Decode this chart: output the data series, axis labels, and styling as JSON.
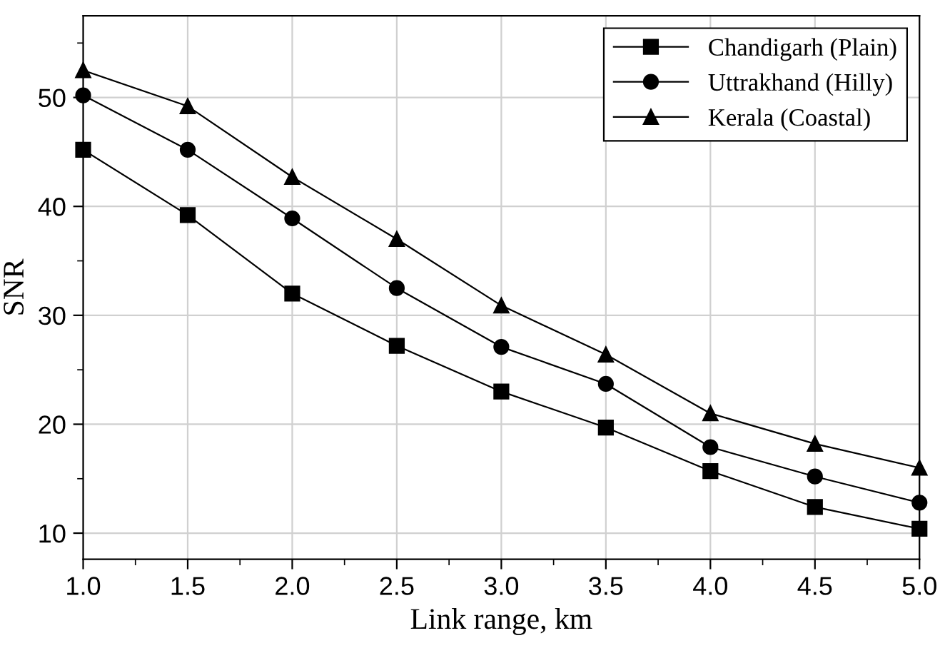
{
  "chart_data": {
    "type": "line",
    "xlabel": "Link range, km",
    "ylabel": "SNR",
    "x": [
      1.0,
      1.5,
      2.0,
      2.5,
      3.0,
      3.5,
      4.0,
      4.5,
      5.0
    ],
    "series": [
      {
        "name": "Chandigarh (Plain)",
        "color": "#000000",
        "marker": "square",
        "values": [
          45.2,
          39.2,
          32.0,
          27.2,
          23.0,
          19.7,
          15.7,
          12.4,
          10.4
        ]
      },
      {
        "name": "Uttrakhand (Hilly)",
        "color": "#000000",
        "marker": "circle",
        "values": [
          50.2,
          45.2,
          38.9,
          32.5,
          27.1,
          23.7,
          17.9,
          15.2,
          12.8
        ]
      },
      {
        "name": "Kerala (Coastal)",
        "color": "#000000",
        "marker": "triangle",
        "values": [
          52.5,
          49.2,
          42.7,
          37.0,
          30.9,
          26.4,
          21.0,
          18.2,
          16.0
        ]
      }
    ],
    "xlim": [
      1.0,
      5.0
    ],
    "ylim": [
      7.6,
      57.5
    ],
    "xticks": [
      {
        "value": 1.0,
        "label": "1.0"
      },
      {
        "value": 1.25,
        "label": null
      },
      {
        "value": 1.5,
        "label": "1.5"
      },
      {
        "value": 1.75,
        "label": null
      },
      {
        "value": 2.0,
        "label": "2.0"
      },
      {
        "value": 2.25,
        "label": null
      },
      {
        "value": 2.5,
        "label": "2.5"
      },
      {
        "value": 2.75,
        "label": null
      },
      {
        "value": 3.0,
        "label": "3.0"
      },
      {
        "value": 3.25,
        "label": null
      },
      {
        "value": 3.5,
        "label": "3.5"
      },
      {
        "value": 3.75,
        "label": null
      },
      {
        "value": 4.0,
        "label": "4.0"
      },
      {
        "value": 4.25,
        "label": null
      },
      {
        "value": 4.5,
        "label": "4.5"
      },
      {
        "value": 4.75,
        "label": null
      },
      {
        "value": 5.0,
        "label": "5.0"
      }
    ],
    "yticks": [
      10,
      {
        "value": 15,
        "label": null
      },
      20,
      {
        "value": 25,
        "label": null
      },
      30,
      {
        "value": 35,
        "label": null
      },
      40,
      {
        "value": 45,
        "label": null
      },
      50,
      {
        "value": 55,
        "label": null
      }
    ],
    "grid": true,
    "legend": "top right",
    "line_style": "solid"
  }
}
